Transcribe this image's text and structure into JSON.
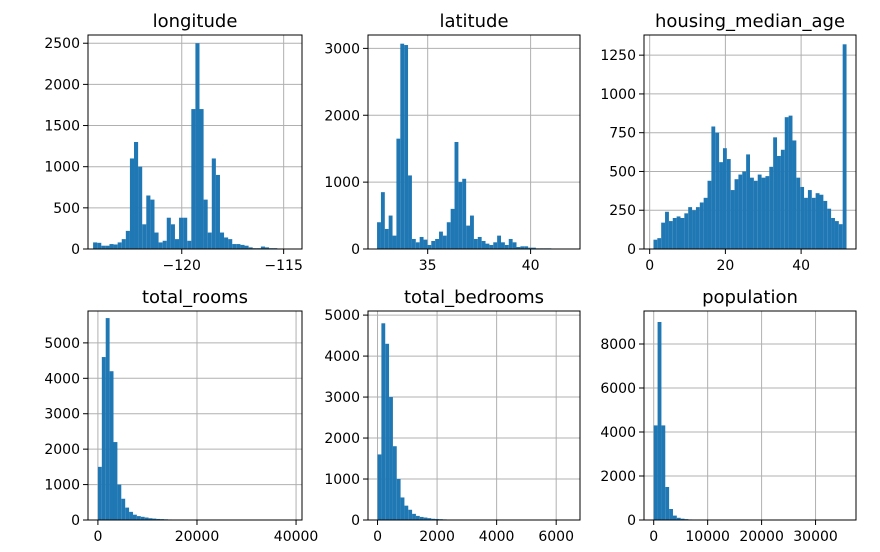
{
  "colors": {
    "bar": "#1f77b4",
    "grid": "#b0b0b0",
    "frame": "#000000",
    "background": "#ffffff"
  },
  "chart_data": [
    {
      "type": "bar",
      "title": "longitude",
      "xlim": [
        -124.6,
        -114.1
      ],
      "ylim": [
        0,
        2600
      ],
      "xticks": [
        -120,
        -115
      ],
      "xtick_labels": [
        "−120",
        "−115"
      ],
      "yticks": [
        0,
        500,
        1000,
        1500,
        2000,
        2500
      ],
      "ytick_labels": [
        "0",
        "500",
        "1000",
        "1500",
        "2000",
        "2500"
      ],
      "bin_range": [
        -124.35,
        -114.31
      ],
      "values": [
        80,
        75,
        40,
        40,
        60,
        55,
        80,
        120,
        220,
        1100,
        1300,
        1000,
        300,
        650,
        600,
        200,
        80,
        100,
        380,
        300,
        120,
        380,
        380,
        100,
        1700,
        2500,
        1700,
        600,
        200,
        1100,
        900,
        200,
        140,
        120,
        60,
        60,
        50,
        40,
        20,
        10,
        10,
        30,
        20,
        10,
        10,
        5,
        5,
        5,
        5,
        5
      ]
    },
    {
      "type": "bar",
      "title": "latitude",
      "xlim": [
        32.1,
        42.4
      ],
      "ylim": [
        0,
        3200
      ],
      "xticks": [
        35,
        40
      ],
      "xtick_labels": [
        "35",
        "40"
      ],
      "yticks": [
        0,
        1000,
        2000,
        3000
      ],
      "ytick_labels": [
        "0",
        "1000",
        "2000",
        "3000"
      ],
      "bin_range": [
        32.54,
        41.95
      ],
      "values": [
        400,
        850,
        300,
        500,
        200,
        1650,
        3070,
        3050,
        1100,
        150,
        100,
        180,
        140,
        60,
        120,
        150,
        260,
        200,
        400,
        600,
        1600,
        1000,
        1050,
        350,
        500,
        150,
        180,
        120,
        80,
        60,
        100,
        200,
        100,
        60,
        150,
        100,
        30,
        40,
        40,
        20,
        20,
        10,
        10,
        10,
        10,
        5,
        5,
        5,
        5,
        5
      ]
    },
    {
      "type": "bar",
      "title": "housing_median_age",
      "xlim": [
        -1.5,
        54.5
      ],
      "ylim": [
        0,
        1380
      ],
      "xticks": [
        0,
        20,
        40
      ],
      "xtick_labels": [
        "0",
        "20",
        "40"
      ],
      "yticks": [
        0,
        250,
        500,
        750,
        1000,
        1250
      ],
      "ytick_labels": [
        "0",
        "250",
        "500",
        "750",
        "1000",
        "1250"
      ],
      "bin_range": [
        1,
        52
      ],
      "values": [
        60,
        70,
        170,
        240,
        180,
        200,
        210,
        200,
        230,
        270,
        250,
        270,
        300,
        330,
        440,
        790,
        750,
        560,
        650,
        580,
        380,
        450,
        480,
        500,
        610,
        460,
        440,
        480,
        460,
        470,
        530,
        720,
        600,
        640,
        850,
        860,
        700,
        460,
        400,
        330,
        380,
        330,
        360,
        350,
        310,
        260,
        200,
        180,
        160,
        1320
      ]
    },
    {
      "type": "bar",
      "title": "total_rooms",
      "xlim": [
        -2000,
        41200
      ],
      "ylim": [
        0,
        5900
      ],
      "xticks": [
        0,
        20000,
        40000
      ],
      "xtick_labels": [
        "0",
        "20000",
        "40000"
      ],
      "yticks": [
        0,
        1000,
        2000,
        3000,
        4000,
        5000
      ],
      "ytick_labels": [
        "0",
        "1000",
        "2000",
        "3000",
        "4000",
        "5000"
      ],
      "bin_range": [
        2,
        39320
      ],
      "values": [
        1500,
        4600,
        5700,
        4200,
        2200,
        1000,
        600,
        350,
        230,
        150,
        110,
        90,
        70,
        50,
        40,
        30,
        25,
        20,
        15,
        12,
        10,
        8,
        6,
        5,
        4,
        3,
        3,
        2,
        2,
        2,
        1,
        1,
        1,
        1,
        1,
        1,
        1,
        1,
        1,
        1,
        0,
        0,
        0,
        0,
        0,
        0,
        0,
        0,
        0,
        1
      ]
    },
    {
      "type": "bar",
      "title": "total_bedrooms",
      "xlim": [
        -320,
        6800
      ],
      "ylim": [
        0,
        5100
      ],
      "xticks": [
        0,
        2000,
        4000,
        6000
      ],
      "xtick_labels": [
        "0",
        "2000",
        "4000",
        "6000"
      ],
      "yticks": [
        0,
        1000,
        2000,
        3000,
        4000,
        5000
      ],
      "ytick_labels": [
        "0",
        "1000",
        "2000",
        "3000",
        "4000",
        "5000"
      ],
      "bin_range": [
        1,
        6445
      ],
      "values": [
        1600,
        4800,
        4300,
        3000,
        1800,
        1000,
        550,
        350,
        250,
        150,
        100,
        75,
        60,
        45,
        30,
        25,
        20,
        15,
        10,
        8,
        6,
        5,
        4,
        3,
        3,
        2,
        2,
        2,
        1,
        1,
        1,
        1,
        1,
        1,
        1,
        0,
        0,
        0,
        0,
        0,
        0,
        0,
        0,
        0,
        0,
        0,
        0,
        0,
        0,
        1
      ]
    },
    {
      "type": "bar",
      "title": "population",
      "xlim": [
        -1800,
        37500
      ],
      "ylim": [
        0,
        9500
      ],
      "xticks": [
        0,
        10000,
        20000,
        30000
      ],
      "xtick_labels": [
        "0",
        "10000",
        "20000",
        "30000"
      ],
      "yticks": [
        0,
        2000,
        4000,
        6000,
        8000
      ],
      "ytick_labels": [
        "0",
        "2000",
        "4000",
        "6000",
        "8000"
      ],
      "bin_range": [
        3,
        35682
      ],
      "values": [
        4300,
        9000,
        4300,
        1500,
        500,
        200,
        100,
        60,
        40,
        25,
        15,
        10,
        8,
        6,
        5,
        4,
        3,
        2,
        2,
        1,
        1,
        1,
        1,
        1,
        0,
        0,
        0,
        0,
        0,
        0,
        0,
        0,
        0,
        0,
        0,
        0,
        0,
        0,
        0,
        0,
        0,
        0,
        0,
        0,
        0,
        0,
        0,
        0,
        0,
        1
      ]
    }
  ]
}
